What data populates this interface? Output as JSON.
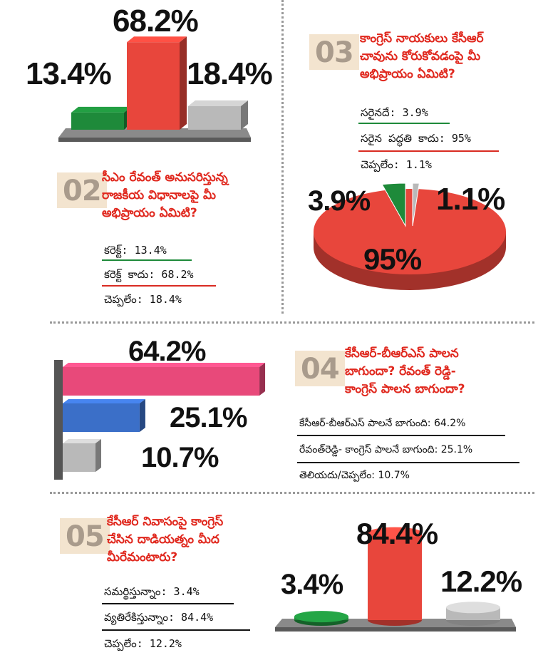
{
  "colors": {
    "green": "#1e8a3a",
    "red": "#e8463c",
    "gray": "#b9b9b9",
    "pink": "#e8497a",
    "blue": "#3b6fc8",
    "question_red": "#e0281e",
    "qnum_bg": "#f3e4cf"
  },
  "q01": {
    "labels": [
      "13.4%",
      "68.2%",
      "18.4%"
    ]
  },
  "q02": {
    "number": "02",
    "question": [
      "సీఎం రేవంత్ అనుసరిస్తున్న",
      "రాజకీయ విధానాలపై మీ",
      "అభిప్రాయం ఏమిటి?"
    ],
    "answers": [
      "కరెక్ట్: 13.4%",
      "కరెక్ట్ కాదు: 68.2%",
      "చెప్పలేం: 18.4%"
    ]
  },
  "q03": {
    "number": "03",
    "question": [
      "కాంగ్రెస్ నాయకులు కేసీఆర్",
      "చావును కోరుకోవడంపై మీ",
      "అభిప్రాయం ఏమిటి?"
    ],
    "answers": [
      "సరైనదే: 3.9%",
      "సరైన పద్ధతి కాదు: 95%",
      "చెప్పలేం: 1.1%"
    ],
    "labels": [
      "3.9%",
      "1.1%",
      "95%"
    ]
  },
  "q04": {
    "number": "04",
    "question": [
      "కేసీఆర్-బీఆర్ఎస్ పాలన",
      "బాగుందా? రేవంత్ రెడ్డి-",
      "కాంగ్రెస్ పాలన బాగుందా?"
    ],
    "answers": [
      "కేసీఆర్-బీఆర్ఎస్ పాలనే బాగుంది: 64.2%",
      "రేవంత్‌రెడ్డి- కాంగ్రెస్ పాలనే బాగుంది: 25.1%",
      "తెలియదు/చెప్పలేం: 10.7%"
    ],
    "labels": [
      "64.2%",
      "25.1%",
      "10.7%"
    ]
  },
  "q05": {
    "number": "05",
    "question": [
      "కేసీఆర్ నివాసంపై కాంగ్రెస్",
      "చేసిన దాడియత్నం మీద",
      "మీరేమంటారు?"
    ],
    "answers": [
      "సమర్థిస్తున్నాం: 3.4%",
      "వ్యతిరేకిస్తున్నాం: 84.4%",
      "చెప్పలేం: 12.2%"
    ],
    "labels": [
      "3.4%",
      "84.4%",
      "12.2%"
    ]
  },
  "chart_data": [
    {
      "type": "bar",
      "categories": [
        "కరెక్ట్",
        "కరెక్ట్ కాదు",
        "చెప్పలేం"
      ],
      "values": [
        13.4,
        68.2,
        18.4
      ],
      "colors": [
        "#1e8a3a",
        "#e8463c",
        "#b9b9b9"
      ]
    },
    {
      "type": "pie",
      "categories": [
        "సరైనదే",
        "సరైన పద్ధతి కాదు",
        "చెప్పలేం"
      ],
      "values": [
        3.9,
        95,
        1.1
      ],
      "colors": [
        "#1e8a3a",
        "#e8463c",
        "#b9b9b9"
      ]
    },
    {
      "type": "bar",
      "orientation": "horizontal",
      "categories": [
        "కేసీఆర్-బీఆర్ఎస్ పాలనే బాగుంది",
        "రేవంత్‌రెడ్డి- కాంగ్రెస్ పాలనే బాగుంది",
        "తెలియదు/చెప్పలేం"
      ],
      "values": [
        64.2,
        25.1,
        10.7
      ],
      "colors": [
        "#e8497a",
        "#3b6fc8",
        "#b9b9b9"
      ]
    },
    {
      "type": "bar",
      "categories": [
        "సమర్థిస్తున్నాం",
        "వ్యతిరేకిస్తున్నాం",
        "చెప్పలేం"
      ],
      "values": [
        3.4,
        84.4,
        12.2
      ],
      "colors": [
        "#1e8a3a",
        "#e8463c",
        "#b9b9b9"
      ]
    }
  ]
}
